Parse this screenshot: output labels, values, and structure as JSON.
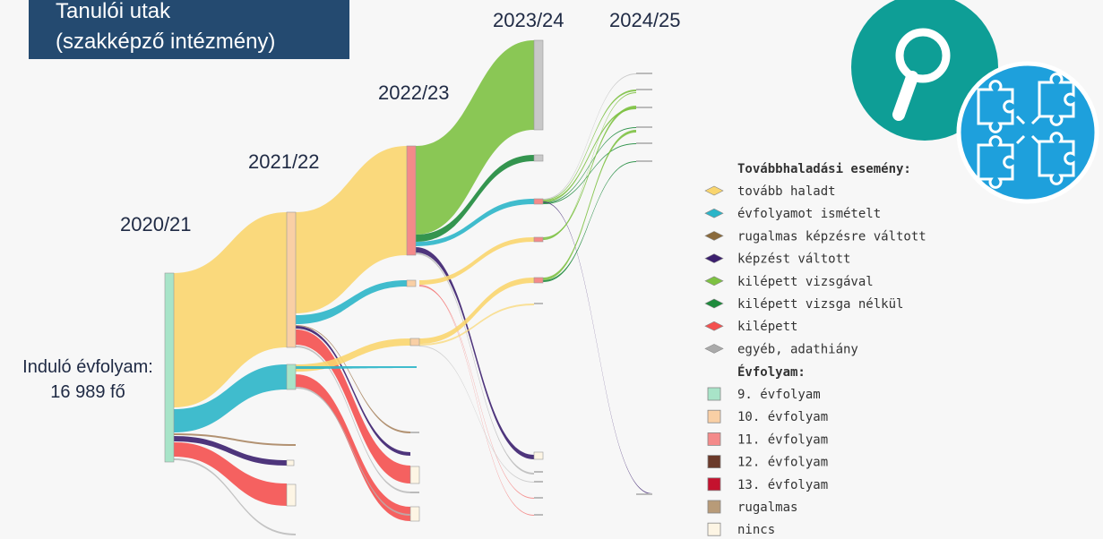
{
  "title": [
    "Tanulói utak",
    "(szakképző intézmény)"
  ],
  "years": [
    "2020/21",
    "2021/22",
    "2022/23",
    "2023/24",
    "2024/25"
  ],
  "start_label": [
    "Induló évfolyam:",
    "16 989 fő"
  ],
  "legend": {
    "event_title": "Továbbhaladási esemény:",
    "events": [
      {
        "label": "tovább haladt",
        "color": "#f9d56e"
      },
      {
        "label": "évfolyamot ismételt",
        "color": "#2bb5c8"
      },
      {
        "label": "rugalmas képzésre váltott",
        "color": "#8a6a3c"
      },
      {
        "label": "képzést váltott",
        "color": "#3b1f6e"
      },
      {
        "label": "kilépett vizsgával",
        "color": "#7dc142"
      },
      {
        "label": "kilépett vizsga nélkül",
        "color": "#1e8a3c"
      },
      {
        "label": "kilépett",
        "color": "#f4504f"
      },
      {
        "label": "egyéb, adathiány",
        "color": "#aaaaaa"
      }
    ],
    "grade_title": "Évfolyam:",
    "grades": [
      {
        "label": "9. évfolyam",
        "color": "#a8e4c8"
      },
      {
        "label": "10. évfolyam",
        "color": "#f9cfa5"
      },
      {
        "label": "11. évfolyam",
        "color": "#f48a8a"
      },
      {
        "label": "12. évfolyam",
        "color": "#6b3a2a"
      },
      {
        "label": "13. évfolyam",
        "color": "#c4122e"
      },
      {
        "label": "rugalmas",
        "color": "#b89b78"
      },
      {
        "label": "nincs",
        "color": "#fdf5e4"
      }
    ]
  }
}
